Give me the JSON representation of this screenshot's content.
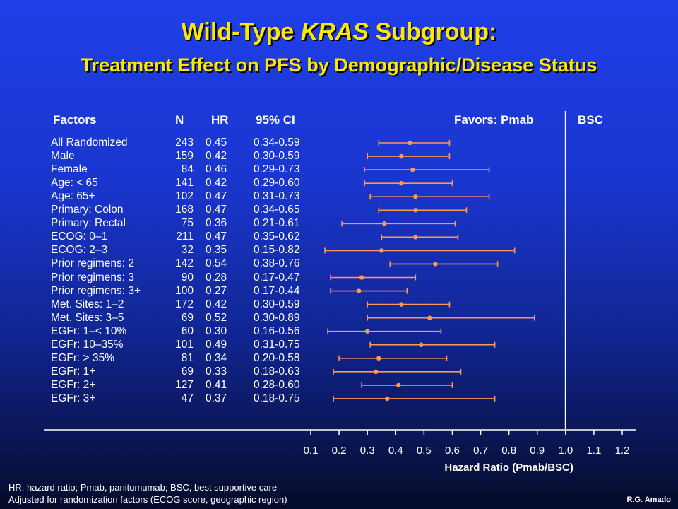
{
  "title_line1_prefix": "Wild-Type ",
  "title_line1_italic": "KRAS",
  "title_line1_suffix": " Subgroup:",
  "title_line2": "Treatment Effect on PFS by Demographic/Disease Status",
  "headers": {
    "factors": "Factors",
    "n": "N",
    "hr": "HR",
    "ci": "95% CI",
    "favors_left": "Favors: Pmab",
    "favors_right": "BSC"
  },
  "chart_data": {
    "type": "scatter",
    "subtype": "forest-plot",
    "xlabel": "Hazard Ratio (Pmab/BSC)",
    "xlim": [
      0.1,
      1.2
    ],
    "xticks": [
      "0.1",
      "0.2",
      "0.3",
      "0.4",
      "0.5",
      "0.6",
      "0.7",
      "0.8",
      "0.9",
      "1.0",
      "1.1",
      "1.2"
    ],
    "reference_line": 1.0,
    "marker_color": "#ff9955",
    "rows": [
      {
        "factor": "All Randomized",
        "n": "243",
        "hr": "0.45",
        "ci": "0.34-0.59",
        "hr_val": 0.45,
        "lo": 0.34,
        "hi": 0.59
      },
      {
        "factor": "Male",
        "n": "159",
        "hr": "0.42",
        "ci": "0.30-0.59",
        "hr_val": 0.42,
        "lo": 0.3,
        "hi": 0.59
      },
      {
        "factor": "Female",
        "n": "84",
        "hr": "0.46",
        "ci": "0.29-0.73",
        "hr_val": 0.46,
        "lo": 0.29,
        "hi": 0.73
      },
      {
        "factor": "Age: < 65",
        "n": "141",
        "hr": "0.42",
        "ci": "0.29-0.60",
        "hr_val": 0.42,
        "lo": 0.29,
        "hi": 0.6
      },
      {
        "factor": "Age: 65+",
        "n": "102",
        "hr": "0.47",
        "ci": "0.31-0.73",
        "hr_val": 0.47,
        "lo": 0.31,
        "hi": 0.73
      },
      {
        "factor": "Primary: Colon",
        "n": "168",
        "hr": "0.47",
        "ci": "0.34-0.65",
        "hr_val": 0.47,
        "lo": 0.34,
        "hi": 0.65
      },
      {
        "factor": "Primary: Rectal",
        "n": "75",
        "hr": "0.36",
        "ci": "0.21-0.61",
        "hr_val": 0.36,
        "lo": 0.21,
        "hi": 0.61
      },
      {
        "factor": "ECOG: 0–1",
        "n": "211",
        "hr": "0.47",
        "ci": "0.35-0.62",
        "hr_val": 0.47,
        "lo": 0.35,
        "hi": 0.62
      },
      {
        "factor": "ECOG: 2–3",
        "n": "32",
        "hr": "0.35",
        "ci": "0.15-0.82",
        "hr_val": 0.35,
        "lo": 0.15,
        "hi": 0.82
      },
      {
        "factor": "Prior regimens: 2",
        "n": "142",
        "hr": "0.54",
        "ci": "0.38-0.76",
        "hr_val": 0.54,
        "lo": 0.38,
        "hi": 0.76
      },
      {
        "factor": "Prior regimens: 3",
        "n": "90",
        "hr": "0.28",
        "ci": "0.17-0.47",
        "hr_val": 0.28,
        "lo": 0.17,
        "hi": 0.47
      },
      {
        "factor": "Prior regimens: 3+",
        "n": "100",
        "hr": "0.27",
        "ci": "0.17-0.44",
        "hr_val": 0.27,
        "lo": 0.17,
        "hi": 0.44
      },
      {
        "factor": "Met. Sites: 1–2",
        "n": "172",
        "hr": "0.42",
        "ci": "0.30-0.59",
        "hr_val": 0.42,
        "lo": 0.3,
        "hi": 0.59
      },
      {
        "factor": "Met. Sites: 3–5",
        "n": "69",
        "hr": "0.52",
        "ci": "0.30-0.89",
        "hr_val": 0.52,
        "lo": 0.3,
        "hi": 0.89
      },
      {
        "factor": "EGFr: 1–< 10%",
        "n": "60",
        "hr": "0.30",
        "ci": "0.16-0.56",
        "hr_val": 0.3,
        "lo": 0.16,
        "hi": 0.56
      },
      {
        "factor": "EGFr: 10–35%",
        "n": "101",
        "hr": "0.49",
        "ci": "0.31-0.75",
        "hr_val": 0.49,
        "lo": 0.31,
        "hi": 0.75
      },
      {
        "factor": "EGFr: > 35%",
        "n": "81",
        "hr": "0.34",
        "ci": "0.20-0.58",
        "hr_val": 0.34,
        "lo": 0.2,
        "hi": 0.58
      },
      {
        "factor": "EGFr: 1+",
        "n": "69",
        "hr": "0.33",
        "ci": "0.18-0.63",
        "hr_val": 0.33,
        "lo": 0.18,
        "hi": 0.63
      },
      {
        "factor": "EGFr: 2+",
        "n": "127",
        "hr": "0.41",
        "ci": "0.28-0.60",
        "hr_val": 0.41,
        "lo": 0.28,
        "hi": 0.6
      },
      {
        "factor": "EGFr: 3+",
        "n": "47",
        "hr": "0.37",
        "ci": "0.18-0.75",
        "hr_val": 0.37,
        "lo": 0.18,
        "hi": 0.75
      }
    ]
  },
  "footnote1": "HR, hazard ratio; Pmab, panitumumab; BSC, best supportive care",
  "footnote2": "Adjusted for randomization factors (ECOG score, geographic region)",
  "credit": "R.G. Amado"
}
